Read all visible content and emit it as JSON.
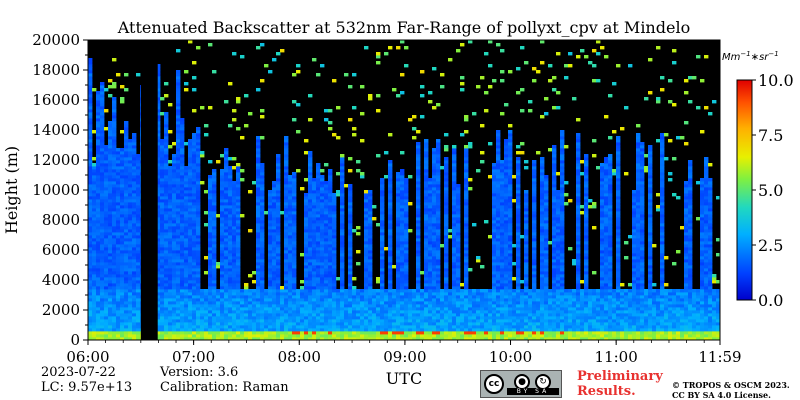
{
  "chart_data": {
    "type": "heatmap",
    "title": "Attenuated Backscatter at 532nm Far-Range of pollyxt_cpv at Mindelo",
    "ylabel": "Height (m)",
    "xlabel": "UTC",
    "ylim": [
      0,
      20000
    ],
    "y_ticks": [
      "0",
      "2000",
      "4000",
      "6000",
      "8000",
      "10000",
      "12000",
      "14000",
      "16000",
      "18000",
      "20000"
    ],
    "y_tick_values": [
      0,
      2000,
      4000,
      6000,
      8000,
      10000,
      12000,
      14000,
      16000,
      18000,
      20000
    ],
    "x_ticks": [
      "06:00",
      "07:00",
      "08:00",
      "09:00",
      "10:00",
      "11:00",
      "11:59"
    ],
    "x_tick_values_hours": [
      6.0,
      7.0,
      8.0,
      9.0,
      10.0,
      11.0,
      11.983
    ],
    "colorbar": {
      "unit": "Mm",
      "unit_exp1": "−1",
      "unit_mid": "∗sr",
      "unit_exp2": "−1",
      "range": [
        0.0,
        10.0
      ],
      "ticks": [
        "0.0",
        "2.5",
        "5.0",
        "7.5",
        "10.0"
      ],
      "tick_values": [
        0.0,
        2.5,
        5.0,
        7.5,
        10.0
      ],
      "colormap": "jet"
    },
    "no_data_periods_hours": [
      [
        6.5,
        6.66
      ]
    ],
    "layers": {
      "surface_layer_top_m": 700,
      "aerosol_layer_top_m": 3500,
      "cloud_base_m": 700
    }
  },
  "footer": {
    "date": "2023-07-22",
    "lc": "LC: 9.57e+13",
    "version": "Version: 3.6",
    "calibration": "Calibration: Raman",
    "license_badge": {
      "cc": "cc",
      "by_sa": "BY SA"
    },
    "preliminary_line1": "Preliminary",
    "preliminary_line2": "Results.",
    "copyright_line1": "© TROPOS & OSCM 2023.",
    "copyright_line2": "CC BY SA 4.0 License."
  }
}
